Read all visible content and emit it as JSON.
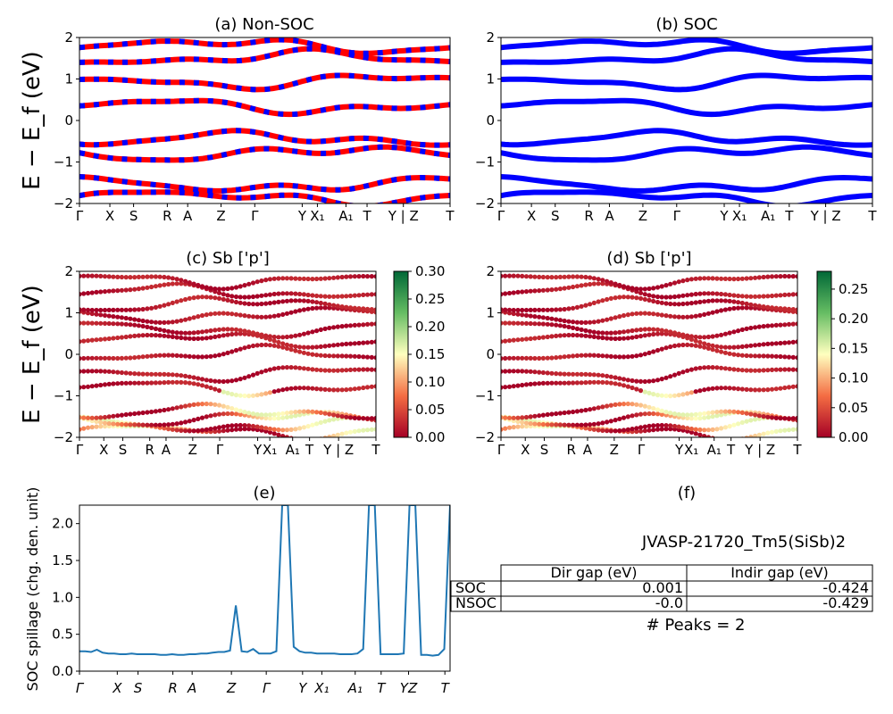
{
  "chart_data": [
    {
      "id": "a",
      "type": "line",
      "title": "(a) Non-SOC",
      "ylabel": "E − E_f (eV)",
      "ylim": [
        -2,
        2
      ],
      "yticks": [
        "2",
        "1",
        "0",
        "−1",
        "−2"
      ],
      "xticks": [
        "Γ",
        "X",
        "S",
        "R",
        "A",
        "Z",
        "Γ",
        "Y",
        "X₁",
        "A₁",
        "T",
        "Y | Z",
        "T"
      ],
      "series": [
        {
          "color": "#ff0000",
          "values": [
            -1.85,
            -1.55,
            -0.8,
            -0.45,
            0.35,
            0.95,
            1.5,
            1.8
          ]
        },
        {
          "color": "#0000ff",
          "values": [
            -1.85,
            -1.55,
            -0.8,
            -0.45,
            0.35,
            0.95,
            1.5,
            1.8
          ]
        }
      ]
    },
    {
      "id": "b",
      "type": "line",
      "title": "(b) SOC",
      "ylim": [
        -2,
        2
      ],
      "yticks": [
        "2",
        "1",
        "0",
        "−1",
        "−2"
      ],
      "xticks": [
        "Γ",
        "X",
        "S",
        "R",
        "A",
        "Z",
        "Γ",
        "Y",
        "X₁",
        "A₁",
        "T",
        "Y | Z",
        "T"
      ],
      "series": [
        {
          "color": "#0000ff",
          "values": [
            -1.85,
            -1.55,
            -0.8,
            -0.45,
            0.35,
            0.95,
            1.5,
            1.8
          ]
        }
      ]
    },
    {
      "id": "c",
      "type": "scatter",
      "title": "(c)  Sb ['p']",
      "ylabel": "E − E_f (eV)",
      "ylim": [
        -2,
        2
      ],
      "yticks": [
        "2",
        "1",
        "0",
        "−1",
        "−2"
      ],
      "xticks": [
        "Γ",
        "X",
        "S",
        "R",
        "A",
        "Z",
        "Γ",
        "Y",
        "X₁",
        "A₁",
        "T",
        "Y | Z",
        "T"
      ],
      "colorbar": {
        "min": 0.0,
        "max": 0.3,
        "ticks": [
          "0.30",
          "0.25",
          "0.20",
          "0.15",
          "0.10",
          "0.05",
          "0.00"
        ],
        "colormap": "RdYlGn"
      }
    },
    {
      "id": "d",
      "type": "scatter",
      "title": "(d) Sb ['p']",
      "ylim": [
        -2,
        2
      ],
      "yticks": [
        "2",
        "1",
        "0",
        "−1",
        "−2"
      ],
      "xticks": [
        "Γ",
        "X",
        "S",
        "R",
        "A",
        "Z",
        "Γ",
        "Y",
        "X₁",
        "A₁",
        "T",
        "Y | Z",
        "T"
      ],
      "colorbar": {
        "min": 0.0,
        "max": 0.28,
        "ticks": [
          "0.25",
          "0.20",
          "0.15",
          "0.10",
          "0.05",
          "0.00"
        ],
        "colormap": "RdYlGn"
      }
    },
    {
      "id": "e",
      "type": "line",
      "title": "(e)",
      "ylabel": "SOC spillage (chg. den. unit)",
      "ylim": [
        0,
        2.25
      ],
      "yticks": [
        "2.0",
        "1.5",
        "1.0",
        "0.5",
        "0.0"
      ],
      "xticks": [
        "Γ",
        "X",
        "S",
        "R",
        "A",
        "Z",
        "Γ",
        "Y",
        "X₁",
        "A₁",
        "T",
        "YZ",
        "T"
      ],
      "series": [
        {
          "color": "#1f77b4",
          "values": [
            0.27,
            0.27,
            0.26,
            0.29,
            0.25,
            0.24,
            0.24,
            0.23,
            0.23,
            0.24,
            0.23,
            0.23,
            0.23,
            0.23,
            0.22,
            0.22,
            0.23,
            0.22,
            0.22,
            0.23,
            0.23,
            0.24,
            0.24,
            0.25,
            0.26,
            0.26,
            0.28,
            0.89,
            0.27,
            0.26,
            0.3,
            0.24,
            0.24,
            0.24,
            0.27,
            2.25,
            2.25,
            0.33,
            0.27,
            0.25,
            0.25,
            0.24,
            0.24,
            0.24,
            0.24,
            0.23,
            0.23,
            0.23,
            0.24,
            0.3,
            2.25,
            2.25,
            0.23,
            0.23,
            0.23,
            0.23,
            0.24,
            2.25,
            2.25,
            0.22,
            0.22,
            0.21,
            0.22,
            0.3,
            2.25
          ]
        }
      ]
    }
  ],
  "panel_f": {
    "title": "(f)",
    "material": "JVASP-21720_Tm5(SiSb)2",
    "col1": "Dir gap (eV)",
    "col2": "Indir gap (eV)",
    "row1_label": "SOC",
    "row1_dir": "0.001",
    "row1_indir": "-0.424",
    "row2_label": "NSOC",
    "row2_dir": "-0.0",
    "row2_indir": "-0.429",
    "peaks": "# Peaks = 2"
  }
}
